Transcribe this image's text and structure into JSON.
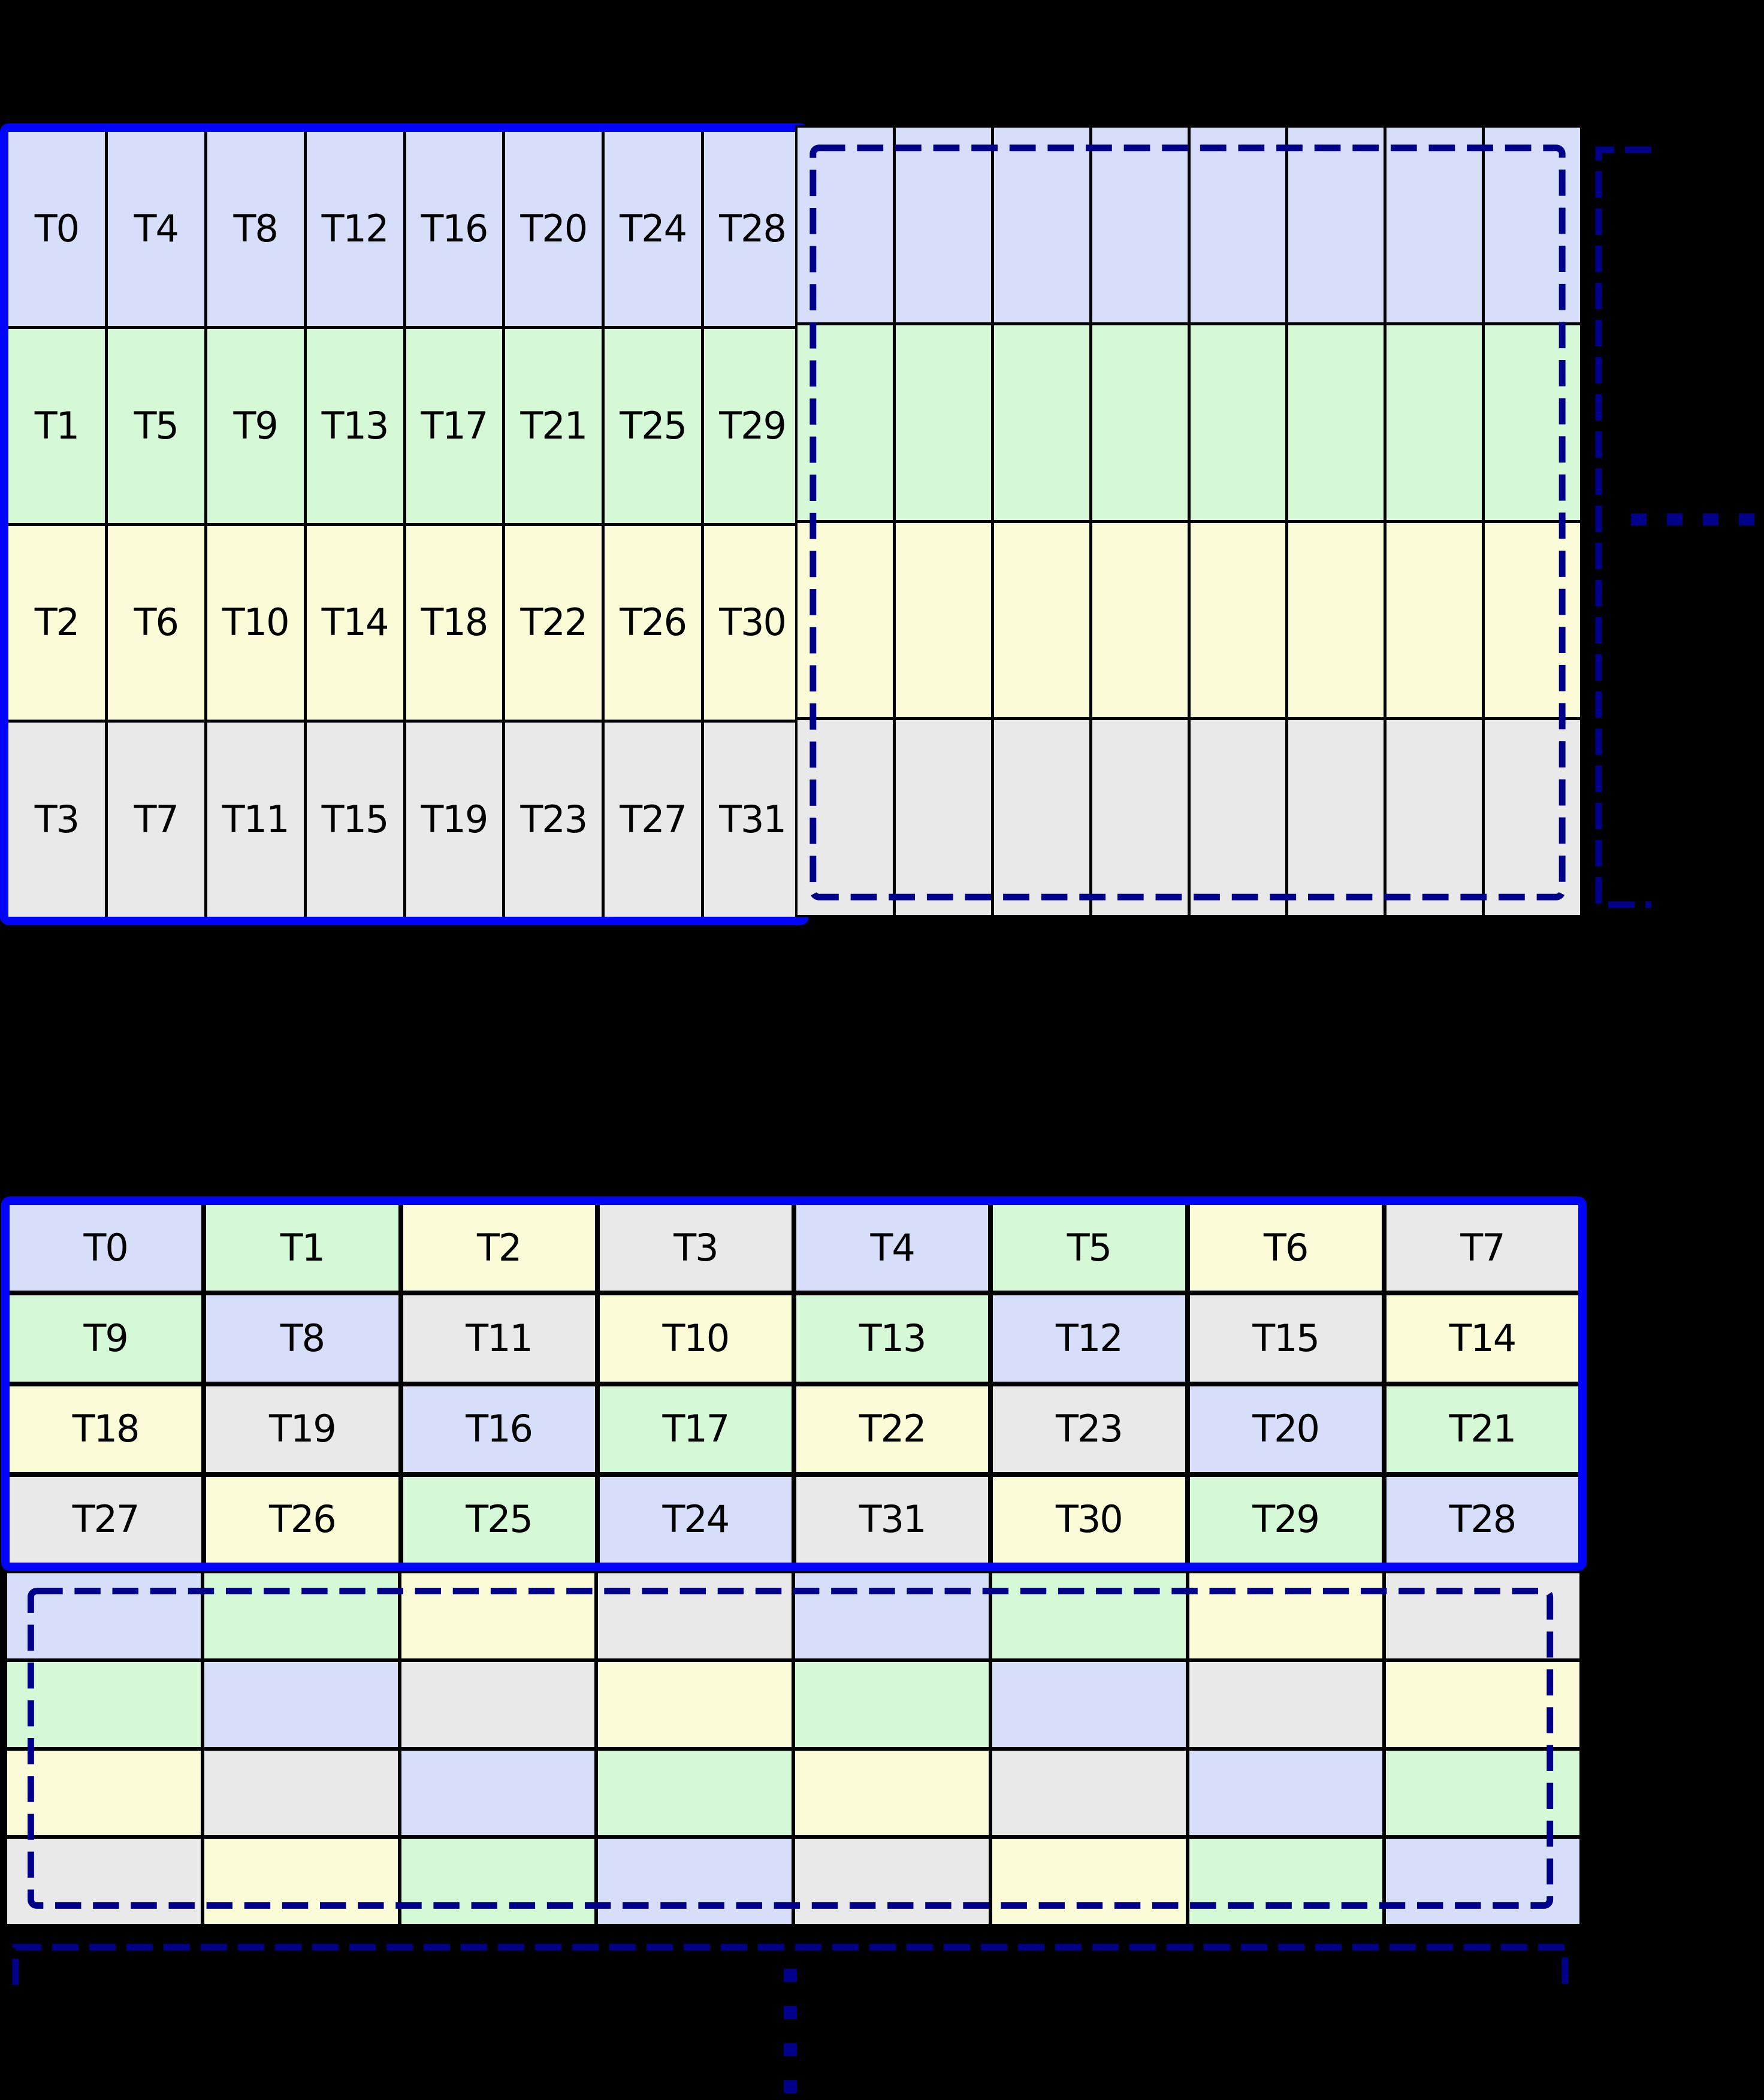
{
  "colors": {
    "background": "#000000",
    "solid_border_blue": "#0004f8",
    "dashed_border_navy": "#00008b",
    "grid_line_black": "#000000",
    "label_text": "#000000",
    "cell": {
      "blue": "#d7def9",
      "green": "#d5f8d6",
      "yellow": "#fbfbd7",
      "gray": "#e9e9e9"
    }
  },
  "top_diagram": {
    "labeled_grid": {
      "rows": 4,
      "cols": 8,
      "cells": [
        [
          {
            "t": "T0",
            "c": "blue"
          },
          {
            "t": "T4",
            "c": "blue"
          },
          {
            "t": "T8",
            "c": "blue"
          },
          {
            "t": "T12",
            "c": "blue"
          },
          {
            "t": "T16",
            "c": "blue"
          },
          {
            "t": "T20",
            "c": "blue"
          },
          {
            "t": "T24",
            "c": "blue"
          },
          {
            "t": "T28",
            "c": "blue"
          }
        ],
        [
          {
            "t": "T1",
            "c": "green"
          },
          {
            "t": "T5",
            "c": "green"
          },
          {
            "t": "T9",
            "c": "green"
          },
          {
            "t": "T13",
            "c": "green"
          },
          {
            "t": "T17",
            "c": "green"
          },
          {
            "t": "T21",
            "c": "green"
          },
          {
            "t": "T25",
            "c": "green"
          },
          {
            "t": "T29",
            "c": "green"
          }
        ],
        [
          {
            "t": "T2",
            "c": "yellow"
          },
          {
            "t": "T6",
            "c": "yellow"
          },
          {
            "t": "T10",
            "c": "yellow"
          },
          {
            "t": "T14",
            "c": "yellow"
          },
          {
            "t": "T18",
            "c": "yellow"
          },
          {
            "t": "T22",
            "c": "yellow"
          },
          {
            "t": "T26",
            "c": "yellow"
          },
          {
            "t": "T30",
            "c": "yellow"
          }
        ],
        [
          {
            "t": "T3",
            "c": "gray"
          },
          {
            "t": "T7",
            "c": "gray"
          },
          {
            "t": "T11",
            "c": "gray"
          },
          {
            "t": "T15",
            "c": "gray"
          },
          {
            "t": "T19",
            "c": "gray"
          },
          {
            "t": "T23",
            "c": "gray"
          },
          {
            "t": "T27",
            "c": "gray"
          },
          {
            "t": "T31",
            "c": "gray"
          }
        ]
      ]
    },
    "continuation_grid": {
      "rows": 4,
      "cols": 8,
      "row_colors": [
        "blue",
        "green",
        "yellow",
        "gray"
      ]
    },
    "ellipsis": {
      "orientation": "horizontal",
      "count": 4
    }
  },
  "bottom_diagram": {
    "labeled_grid": {
      "rows": 4,
      "cols": 8,
      "cells": [
        [
          {
            "t": "T0",
            "c": "blue"
          },
          {
            "t": "T1",
            "c": "green"
          },
          {
            "t": "T2",
            "c": "yellow"
          },
          {
            "t": "T3",
            "c": "gray"
          },
          {
            "t": "T4",
            "c": "blue"
          },
          {
            "t": "T5",
            "c": "green"
          },
          {
            "t": "T6",
            "c": "yellow"
          },
          {
            "t": "T7",
            "c": "gray"
          }
        ],
        [
          {
            "t": "T9",
            "c": "green"
          },
          {
            "t": "T8",
            "c": "blue"
          },
          {
            "t": "T11",
            "c": "gray"
          },
          {
            "t": "T10",
            "c": "yellow"
          },
          {
            "t": "T13",
            "c": "green"
          },
          {
            "t": "T12",
            "c": "blue"
          },
          {
            "t": "T15",
            "c": "gray"
          },
          {
            "t": "T14",
            "c": "yellow"
          }
        ],
        [
          {
            "t": "T18",
            "c": "yellow"
          },
          {
            "t": "T19",
            "c": "gray"
          },
          {
            "t": "T16",
            "c": "blue"
          },
          {
            "t": "T17",
            "c": "green"
          },
          {
            "t": "T22",
            "c": "yellow"
          },
          {
            "t": "T23",
            "c": "gray"
          },
          {
            "t": "T20",
            "c": "blue"
          },
          {
            "t": "T21",
            "c": "green"
          }
        ],
        [
          {
            "t": "T27",
            "c": "gray"
          },
          {
            "t": "T26",
            "c": "yellow"
          },
          {
            "t": "T25",
            "c": "green"
          },
          {
            "t": "T24",
            "c": "blue"
          },
          {
            "t": "T31",
            "c": "gray"
          },
          {
            "t": "T30",
            "c": "yellow"
          },
          {
            "t": "T29",
            "c": "green"
          },
          {
            "t": "T28",
            "c": "blue"
          }
        ]
      ]
    },
    "continuation_grid": {
      "rows": 4,
      "cols": 8,
      "note": "same per-cell colors as labeled grid, no labels"
    },
    "ellipsis": {
      "orientation": "vertical",
      "count": 4
    }
  }
}
